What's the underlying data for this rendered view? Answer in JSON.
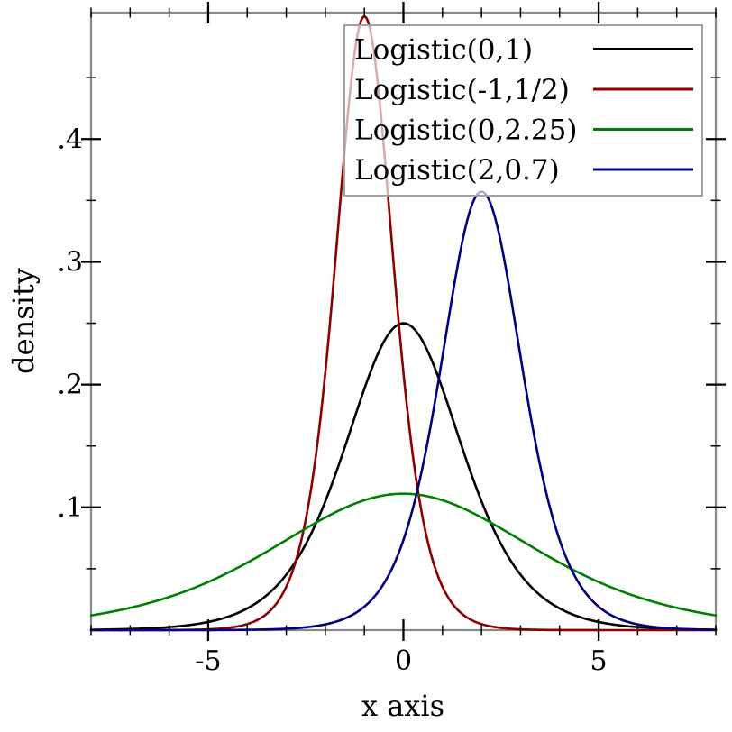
{
  "figure": {
    "background": "#ffffff",
    "frame_color": "#878787",
    "tick_color": "#000000",
    "text_color": "#000000"
  },
  "chart_data": {
    "type": "line",
    "title": "",
    "xlabel": "x axis",
    "ylabel": "density",
    "grid": false,
    "x_axis": {
      "min": -8,
      "max": 8,
      "major_ticks": [
        -5,
        0,
        5
      ],
      "major_tick_labels": [
        "-5",
        "0",
        "5"
      ],
      "minor_tick_step": 1
    },
    "y_axis": {
      "min": 0,
      "max": 0.503,
      "major_ticks": [
        0.1,
        0.2,
        0.3,
        0.4
      ],
      "major_tick_labels": [
        ".1",
        ".2",
        ".3",
        ".4"
      ],
      "minor_tick_step": 0.05,
      "minor_tick_max": 0.45
    },
    "legend": {
      "position": "top-right",
      "background": "rgba(255,255,255,0.67)",
      "border_color": "#a1a1a1"
    },
    "series": [
      {
        "name": "Logistic(0,1)",
        "color": "#000000",
        "curve": "logistic-pdf",
        "location_mu": 0,
        "scale_s": 1,
        "peak_x": 0,
        "peak_density": 0.25
      },
      {
        "name": "Logistic(-1,1/2)",
        "color": "#8b0000",
        "curve": "logistic-pdf",
        "location_mu": -1,
        "scale_s": 0.5,
        "peak_x": -1,
        "peak_density": 0.5
      },
      {
        "name": "Logistic(0,2.25)",
        "color": "#008000",
        "curve": "logistic-pdf",
        "location_mu": 0,
        "scale_s": 2.25,
        "peak_x": 0,
        "peak_density": 0.111
      },
      {
        "name": "Logistic(2,0.7)",
        "color": "#000082",
        "curve": "logistic-pdf",
        "location_mu": 2,
        "scale_s": 0.7,
        "peak_x": 2,
        "peak_density": 0.357
      }
    ]
  }
}
